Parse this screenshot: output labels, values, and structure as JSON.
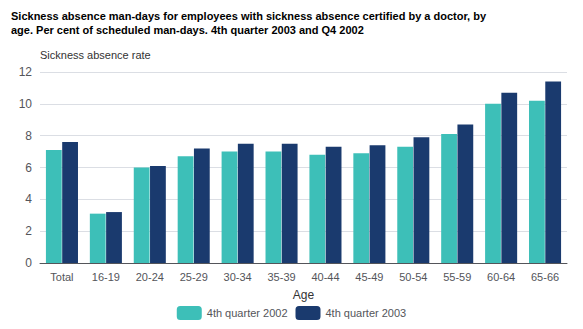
{
  "chart_data": {
    "type": "bar",
    "title": "Sickness absence man-days for employees with sickness absence certified by a doctor, by\nage. Per cent of scheduled man-days. 4th quarter 2003 and Q4 2002",
    "ylabel": "Sickness absence rate",
    "xlabel": "Age",
    "categories": [
      "Total",
      "16-19",
      "20-24",
      "25-29",
      "30-34",
      "35-39",
      "40-44",
      "45-49",
      "50-54",
      "55-59",
      "60-64",
      "65-66"
    ],
    "series": [
      {
        "name": "4th quarter 2002",
        "color": "#3dbfb8",
        "values": [
          7.1,
          3.1,
          6.0,
          6.7,
          7.0,
          7.0,
          6.8,
          6.9,
          7.3,
          8.1,
          10.0,
          10.2
        ]
      },
      {
        "name": "4th quarter 2003",
        "color": "#1a3a6e",
        "values": [
          7.6,
          3.2,
          6.1,
          7.2,
          7.5,
          7.5,
          7.3,
          7.4,
          7.9,
          8.7,
          10.7,
          11.4
        ]
      }
    ],
    "ylim": [
      0,
      12
    ],
    "yticks": [
      0,
      2,
      4,
      6,
      8,
      10,
      12
    ],
    "grid": true,
    "legend": "bottom"
  }
}
